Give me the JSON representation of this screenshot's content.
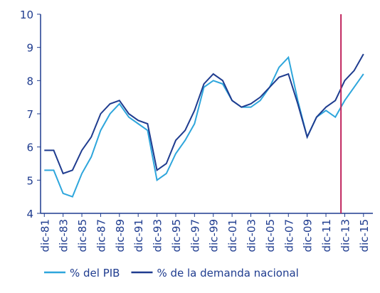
{
  "chart_data": {
    "type": "line",
    "x": [
      1981,
      1982,
      1983,
      1984,
      1985,
      1986,
      1987,
      1988,
      1989,
      1990,
      1991,
      1992,
      1993,
      1994,
      1995,
      1996,
      1997,
      1998,
      1999,
      2000,
      2001,
      2002,
      2003,
      2004,
      2005,
      2006,
      2007,
      2008,
      2009,
      2010,
      2011,
      2012,
      2013,
      2014,
      2015
    ],
    "series": [
      {
        "name": "% del PIB",
        "color": "#2ea6dc",
        "values": [
          5.3,
          5.3,
          4.6,
          4.5,
          5.2,
          5.7,
          6.5,
          7.0,
          7.3,
          6.9,
          6.7,
          6.5,
          5.0,
          5.2,
          5.8,
          6.2,
          6.7,
          7.8,
          8.0,
          7.9,
          7.4,
          7.2,
          7.2,
          7.4,
          7.8,
          8.4,
          8.7,
          7.4,
          6.3,
          6.9,
          7.1,
          6.9,
          7.4,
          7.8,
          8.2
        ]
      },
      {
        "name": "% de la demanda nacional",
        "color": "#1f3c8f",
        "values": [
          5.9,
          5.9,
          5.2,
          5.3,
          5.9,
          6.3,
          7.0,
          7.3,
          7.4,
          7.0,
          6.8,
          6.7,
          5.3,
          5.5,
          6.2,
          6.5,
          7.1,
          7.9,
          8.2,
          8.0,
          7.4,
          7.2,
          7.3,
          7.5,
          7.8,
          8.1,
          8.2,
          7.3,
          6.3,
          6.9,
          7.2,
          7.4,
          8.0,
          8.3,
          8.8
        ]
      }
    ],
    "xlim": [
      1980.6,
      2016
    ],
    "xticks": [
      {
        "value": 1981,
        "label": "dic-81"
      },
      {
        "value": 1983,
        "label": "dic-83"
      },
      {
        "value": 1985,
        "label": "dic-85"
      },
      {
        "value": 1987,
        "label": "dic-87"
      },
      {
        "value": 1989,
        "label": "dic-89"
      },
      {
        "value": 1991,
        "label": "dic-91"
      },
      {
        "value": 1993,
        "label": "dic-93"
      },
      {
        "value": 1995,
        "label": "dic-95"
      },
      {
        "value": 1997,
        "label": "dic-97"
      },
      {
        "value": 1999,
        "label": "dic-99"
      },
      {
        "value": 2001,
        "label": "dic-01"
      },
      {
        "value": 2003,
        "label": "dic-03"
      },
      {
        "value": 2005,
        "label": "dic-05"
      },
      {
        "value": 2007,
        "label": "dic-07"
      },
      {
        "value": 2009,
        "label": "dic-09"
      },
      {
        "value": 2011,
        "label": "dic-11"
      },
      {
        "value": 2013,
        "label": "dic-13"
      },
      {
        "value": 2015,
        "label": "dic-15"
      }
    ],
    "ylim": [
      4,
      10
    ],
    "yticks": [
      4,
      5,
      6,
      7,
      8,
      9,
      10
    ],
    "vline": {
      "x": 2012.6,
      "color": "#c0245c"
    }
  }
}
